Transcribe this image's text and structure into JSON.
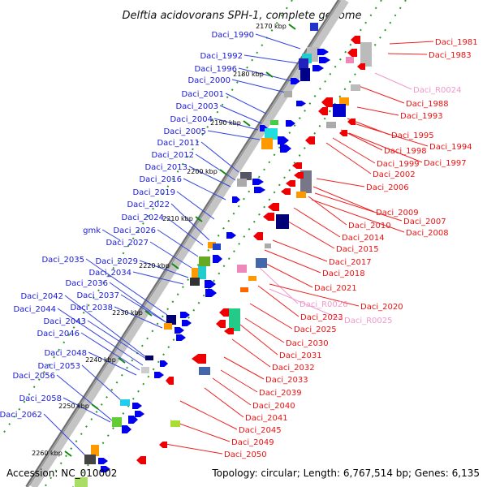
{
  "title": "Delftia acidovorans SPH-1, complete genome",
  "accession": "Accession: NC_010002",
  "summary": "Topology: circular; Length: 6,767,514 bp; Genes: 6,135",
  "colors": {
    "plus_strand": "#0000ee",
    "minus_strand": "#ee0000",
    "rna": "#ee88bb",
    "backbone": "#888888",
    "kbp_tick": "#118811"
  },
  "kbp_marks": [
    "2170 kbp",
    "2180 kbp",
    "2190 kbp",
    "2200 kbp",
    "2210 kbp",
    "2220 kbp",
    "2230 kbp",
    "2240 kbp",
    "2250 kbp",
    "2260 kbp"
  ],
  "left_labels": [
    "Daci_1990",
    "Daci_1992",
    "Daci_1996",
    "Daci_2000",
    "Daci_2001",
    "Daci_2003",
    "Daci_2004",
    "Daci_2005",
    "Daci_2011",
    "Daci_2012",
    "Daci_2013",
    "Daci_2016",
    "Daci_2019",
    "Daci_2022",
    "Daci_2024",
    "gmk",
    "Daci_2026",
    "Daci_2027",
    "Daci_2035",
    "Daci_2029",
    "Daci_2034",
    "Daci_2036",
    "Daci_2042",
    "Daci_2037",
    "Daci_2044",
    "Daci_2038",
    "Daci_2043",
    "Daci_2046",
    "Daci_2048",
    "Daci_2053",
    "Daci_2056",
    "Daci_2058",
    "Daci_2062"
  ],
  "right_labels": [
    "Daci_1981",
    "Daci_1983",
    "Daci_R0024",
    "Daci_1988",
    "Daci_1993",
    "Daci_1995",
    "Daci_1994",
    "Daci_1998",
    "Daci_1997",
    "Daci_1999",
    "Daci_2002",
    "Daci_2006",
    "Daci_2009",
    "Daci_2007",
    "Daci_2010",
    "Daci_2008",
    "Daci_2014",
    "Daci_2015",
    "Daci_2017",
    "Daci_2018",
    "Daci_2021",
    "Daci_R0026",
    "Daci_2020",
    "Daci_2023",
    "Daci_R0025",
    "Daci_2025",
    "Daci_2030",
    "Daci_2031",
    "Daci_2032",
    "Daci_2033",
    "Daci_2039",
    "Daci_2040",
    "Daci_2041",
    "Daci_2045",
    "Daci_2049",
    "Daci_2050"
  ]
}
